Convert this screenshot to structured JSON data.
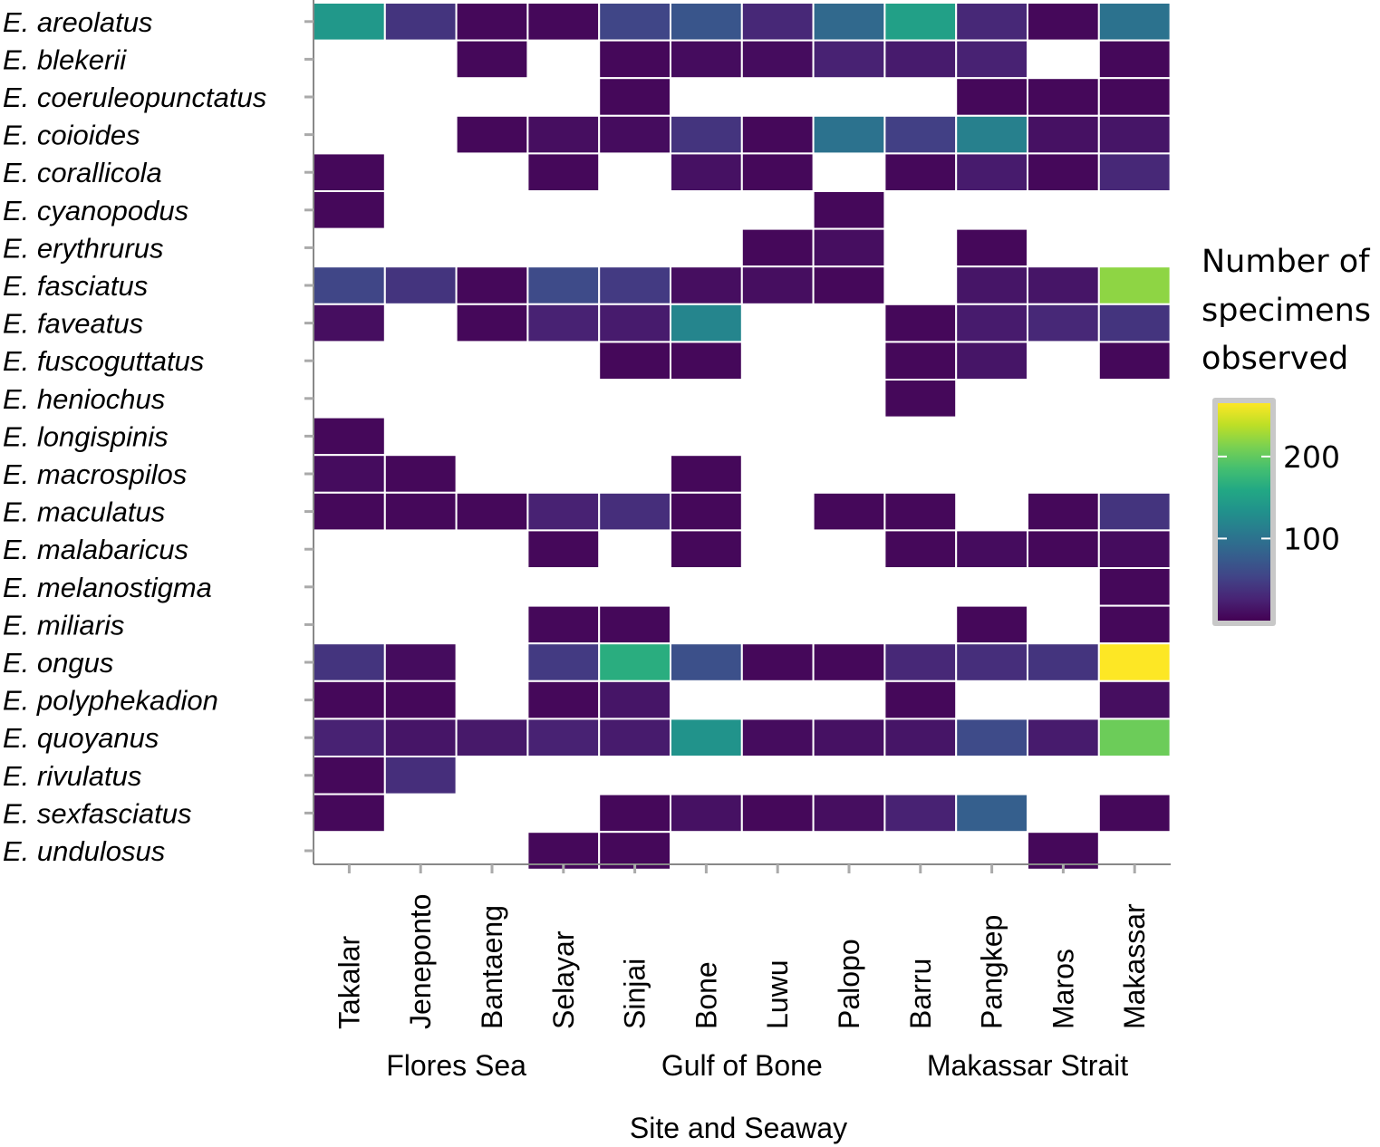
{
  "chart_data": {
    "type": "heatmap",
    "xlabel": "Site and Seaway",
    "ylabel": "",
    "sites": [
      "Takalar",
      "Jeneponto",
      "Bantaeng",
      "Selayar",
      "Sinjai",
      "Bone",
      "Luwu",
      "Palopo",
      "Barru",
      "Pangkep",
      "Maros",
      "Makassar"
    ],
    "seaways": [
      {
        "name": "Flores Sea",
        "sites": [
          "Takalar",
          "Jeneponto",
          "Bantaeng",
          "Selayar"
        ]
      },
      {
        "name": "Gulf of Bone",
        "sites": [
          "Sinjai",
          "Bone",
          "Luwu",
          "Palopo"
        ]
      },
      {
        "name": "Makassar Strait",
        "sites": [
          "Barru",
          "Pangkep",
          "Maros",
          "Makassar"
        ]
      }
    ],
    "species": [
      "E. areolatus",
      "E. blekerii",
      "E. coeruleopunctatus",
      "E. coioides",
      "E. corallicola",
      "E. cyanopodus",
      "E. erythrurus",
      "E. fasciatus",
      "E. faveatus",
      "E. fuscoguttatus",
      "E. heniochus",
      "E. longispinis",
      "E. macrospilos",
      "E. maculatus",
      "E. malabaricus",
      "E. melanostigma",
      "E. miliaris",
      "E. ongus",
      "E. polyphekadion",
      "E. quoyanus",
      "E. rivulatus",
      "E. sexfasciatus",
      "E. undulosus"
    ],
    "values": [
      [
        140,
        40,
        5,
        5,
        55,
        70,
        30,
        90,
        150,
        30,
        5,
        100
      ],
      [
        null,
        null,
        5,
        null,
        5,
        8,
        8,
        25,
        20,
        25,
        null,
        5
      ],
      [
        null,
        null,
        null,
        null,
        5,
        null,
        null,
        null,
        null,
        5,
        5,
        5
      ],
      [
        null,
        null,
        5,
        10,
        8,
        40,
        5,
        100,
        50,
        115,
        12,
        15
      ],
      [
        5,
        null,
        null,
        5,
        null,
        12,
        5,
        null,
        5,
        20,
        5,
        30
      ],
      [
        5,
        null,
        null,
        null,
        null,
        null,
        null,
        5,
        null,
        null,
        null,
        null
      ],
      [
        null,
        null,
        null,
        null,
        null,
        null,
        5,
        10,
        null,
        5,
        null,
        null
      ],
      [
        55,
        40,
        5,
        60,
        45,
        10,
        10,
        5,
        null,
        15,
        15,
        220
      ],
      [
        10,
        null,
        5,
        25,
        20,
        120,
        null,
        null,
        5,
        20,
        30,
        40
      ],
      [
        null,
        null,
        null,
        null,
        5,
        5,
        null,
        null,
        5,
        15,
        null,
        5
      ],
      [
        null,
        null,
        null,
        null,
        null,
        null,
        null,
        null,
        5,
        null,
        null,
        null
      ],
      [
        5,
        null,
        null,
        null,
        null,
        null,
        null,
        null,
        null,
        null,
        null,
        null
      ],
      [
        8,
        5,
        null,
        null,
        null,
        5,
        null,
        null,
        null,
        null,
        null,
        null
      ],
      [
        5,
        5,
        5,
        25,
        35,
        5,
        null,
        5,
        5,
        null,
        5,
        40
      ],
      [
        null,
        null,
        null,
        5,
        null,
        5,
        null,
        null,
        5,
        8,
        5,
        8
      ],
      [
        null,
        null,
        null,
        null,
        null,
        null,
        null,
        null,
        null,
        null,
        null,
        5
      ],
      [
        null,
        null,
        null,
        5,
        5,
        null,
        null,
        null,
        null,
        5,
        null,
        5
      ],
      [
        40,
        8,
        null,
        45,
        165,
        65,
        5,
        5,
        30,
        35,
        40,
        265
      ],
      [
        5,
        5,
        null,
        5,
        15,
        null,
        null,
        null,
        5,
        null,
        null,
        10
      ],
      [
        25,
        15,
        18,
        25,
        20,
        135,
        8,
        12,
        15,
        60,
        20,
        205
      ],
      [
        5,
        35,
        null,
        null,
        null,
        null,
        null,
        null,
        null,
        null,
        null,
        null
      ],
      [
        5,
        null,
        null,
        null,
        5,
        12,
        5,
        10,
        25,
        80,
        null,
        5
      ],
      [
        null,
        null,
        null,
        5,
        5,
        null,
        null,
        null,
        null,
        null,
        5,
        null
      ]
    ],
    "colorbar": {
      "title": [
        "Number of",
        "specimens",
        "observed"
      ],
      "range": [
        0,
        265
      ],
      "ticks": [
        100,
        200
      ],
      "tick_labels": [
        "100",
        "200"
      ],
      "colormap": "viridis"
    }
  }
}
